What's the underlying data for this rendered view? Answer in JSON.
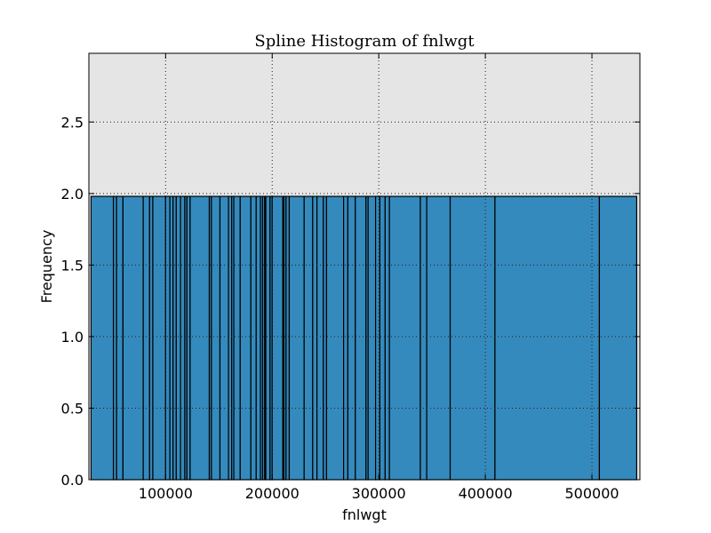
{
  "chart_data": {
    "type": "bar",
    "title": "Spline Histogram of fnlwgt",
    "xlabel": "fnlwgt",
    "ylabel": "Frequency",
    "xlim": [
      28000,
      545000
    ],
    "ylim": [
      0.0,
      2.98
    ],
    "xticks": [
      100000,
      200000,
      300000,
      400000,
      500000
    ],
    "yticks": [
      0.0,
      0.5,
      1.0,
      1.5,
      2.0,
      2.5
    ],
    "xtick_labels": [
      "100000",
      "200000",
      "300000",
      "400000",
      "500000"
    ],
    "ytick_labels": [
      "0.0",
      "0.5",
      "1.0",
      "1.5",
      "2.0",
      "2.5"
    ],
    "grid": true,
    "bin_edges": [
      30000,
      51000,
      54000,
      60000,
      79000,
      85000,
      88000,
      100000,
      104000,
      107000,
      110000,
      114000,
      118000,
      120000,
      123000,
      141000,
      143000,
      151000,
      159000,
      162000,
      164000,
      170000,
      180000,
      185000,
      189000,
      191000,
      193000,
      194000,
      198000,
      200000,
      210000,
      211000,
      213000,
      216000,
      230000,
      238000,
      242000,
      248000,
      251000,
      267000,
      271000,
      278000,
      288000,
      290000,
      297000,
      301000,
      306000,
      310000,
      339000,
      345000,
      367000,
      409000,
      507000,
      542000
    ],
    "values": [
      1.98,
      1.98,
      1.98,
      1.98,
      1.98,
      1.98,
      1.98,
      1.98,
      1.98,
      1.98,
      1.98,
      1.98,
      1.98,
      1.98,
      1.98,
      1.98,
      1.98,
      1.98,
      1.98,
      1.98,
      1.98,
      1.98,
      1.98,
      1.98,
      1.98,
      1.98,
      1.98,
      1.98,
      1.98,
      1.98,
      1.98,
      1.98,
      1.98,
      1.98,
      1.98,
      1.98,
      1.98,
      1.98,
      1.98,
      1.98,
      1.98,
      1.98,
      1.98,
      1.98,
      1.98,
      1.98,
      1.98,
      1.98,
      1.98,
      1.98,
      1.98,
      1.98,
      1.98
    ],
    "colors": {
      "bar_fill": "#348abd",
      "bar_edge": "#000000",
      "plot_background": "#e5e5e5",
      "grid": "#222222"
    }
  }
}
